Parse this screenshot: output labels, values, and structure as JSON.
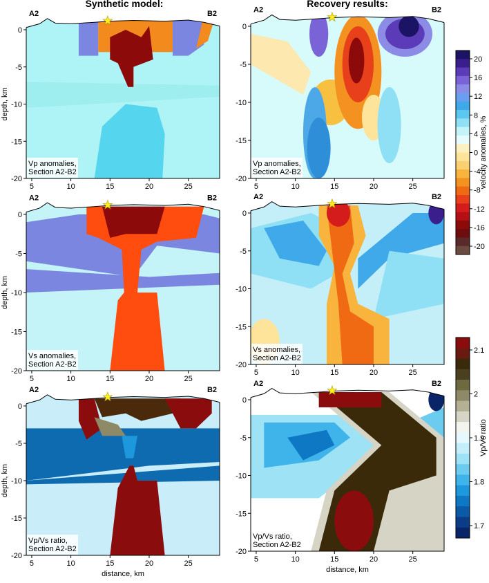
{
  "titles": {
    "left": "Synthetic model:",
    "right": "Recovery results:"
  },
  "panels": [
    {
      "start": "A2",
      "end": "B2",
      "caption": [
        "Vp anomalies,",
        "Section A2-B2"
      ],
      "xlim": [
        4.3,
        29
      ],
      "ylim": [
        -20,
        1.3
      ],
      "xticks": [
        5,
        10,
        15,
        20,
        25
      ],
      "yticks": [
        0,
        -5,
        -10,
        -15,
        -20
      ],
      "ylabel": "depth, km"
    },
    {
      "start": "A2",
      "end": "B2",
      "caption": [
        "Vp anomalies,",
        "Section A2-B2"
      ],
      "xlim": [
        4.3,
        29
      ],
      "ylim": [
        -20,
        1.3
      ],
      "xticks": [
        5,
        10,
        15,
        20,
        25
      ],
      "yticks": [
        0,
        -5,
        -10,
        -15,
        -20
      ]
    },
    {
      "start": "A2",
      "end": "B2",
      "caption": [
        "Vs anomalies,",
        "Section A2-B2"
      ],
      "xlim": [
        4.3,
        29
      ],
      "ylim": [
        -20,
        1.3
      ],
      "xticks": [
        5,
        10,
        15,
        20,
        25
      ],
      "yticks": [
        0,
        -5,
        -10,
        -15,
        -20
      ],
      "ylabel": "depth, km"
    },
    {
      "start": "A2",
      "end": "B2",
      "caption": [
        "Vs anomalies,",
        "Section A2-B2"
      ],
      "xlim": [
        4.3,
        29
      ],
      "ylim": [
        -20,
        1.3
      ],
      "xticks": [
        5,
        10,
        15,
        20,
        25
      ],
      "yticks": [
        0,
        -5,
        -10,
        -15,
        -20
      ]
    },
    {
      "start": "A2",
      "end": "B2",
      "caption": [
        "Vp/Vs ratio,",
        "Section A2-B2"
      ],
      "xlim": [
        4.3,
        29
      ],
      "ylim": [
        -20,
        1.3
      ],
      "xticks": [
        5,
        10,
        15,
        20,
        25
      ],
      "yticks": [
        0,
        -5,
        -10,
        -15,
        -20
      ],
      "ylabel": "depth, km",
      "xlabel": "distance, km"
    },
    {
      "start": "A2",
      "end": "B2",
      "caption": [
        "Vp/Vs ratio,",
        "Section A2-B2"
      ],
      "xlim": [
        4.3,
        29
      ],
      "ylim": [
        -20,
        1.3
      ],
      "xticks": [
        5,
        10,
        15,
        20,
        25
      ],
      "yticks": [
        0,
        -5,
        -10,
        -15,
        -20
      ],
      "xlabel": "distance, km"
    }
  ],
  "colorbars": [
    {
      "label": "velocity anomalies, %",
      "ticks": [
        20,
        16,
        12,
        8,
        4,
        0,
        -4,
        -8,
        -12,
        -16,
        -20
      ],
      "colors": [
        "#1b1464",
        "#3a1f8c",
        "#5b3bb8",
        "#7a63d6",
        "#8c8ce6",
        "#6a9ef0",
        "#3fa9ea",
        "#5cc8f0",
        "#8fe0f5",
        "#c4f3f8",
        "#e6fbfb",
        "#fdf0c0",
        "#fde49a",
        "#fbd070",
        "#f8b43c",
        "#f39220",
        "#f06a14",
        "#e8401a",
        "#d41c1c",
        "#b40f14",
        "#8c0a0a",
        "#6e0d0d",
        "#5a2a2a",
        "#6b4a40"
      ]
    },
    {
      "label": "Vp/Vs ratio",
      "ticks": [
        2.1,
        2,
        1.9,
        1.8,
        1.7
      ],
      "colors": [
        "#8b0c0c",
        "#6a1a10",
        "#3a2a0a",
        "#4a4020",
        "#6e6a40",
        "#8e8a68",
        "#b4b094",
        "#d6d4c4",
        "#f4f4ee",
        "#e6f8fc",
        "#c4eefa",
        "#9ee2f6",
        "#6cccf0",
        "#3fb4ea",
        "#1d98dc",
        "#0f78c4",
        "#0a5aa8",
        "#0a3c88",
        "#0a2468"
      ]
    }
  ]
}
